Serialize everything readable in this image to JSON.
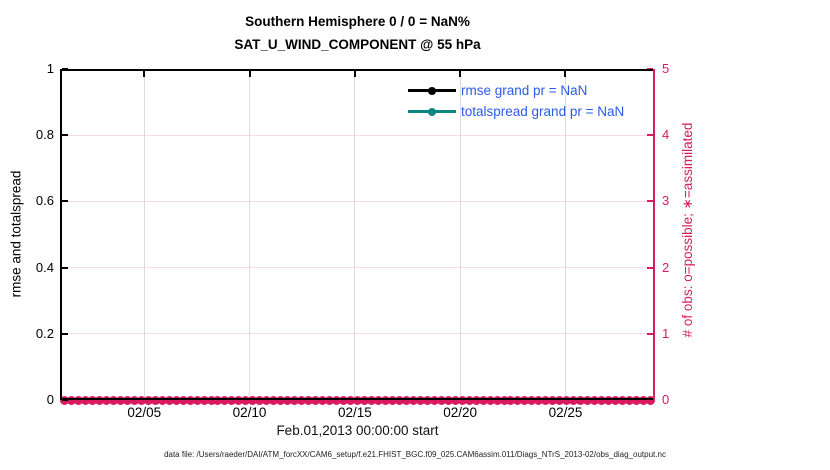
{
  "chart": {
    "title1": "Southern Hemisphere 0 / 0 = NaN%",
    "title2": "SAT_U_WIND_COMPONENT @ 55 hPa",
    "xlabel": "Feb.01,2013 00:00:00 start",
    "ylabel_left": "rmse and totalspread",
    "ylabel_right": "# of obs: o=possible; ∗=assimilated"
  },
  "chart_data": {
    "type": "line",
    "title": "Southern Hemisphere 0 / 0 = NaN%",
    "subtitle": "SAT_U_WIND_COMPONENT @ 55 hPa",
    "xlabel": "Feb.01,2013 00:00:00 start",
    "ylabel_left": "rmse and totalspread",
    "ylabel_right": "# of obs: o=possible; ∗=assimilated",
    "ylim_left": [
      0,
      1
    ],
    "yticks_left": [
      0,
      0.2,
      0.4,
      0.6,
      0.8,
      1
    ],
    "ylim_right": [
      0,
      5
    ],
    "yticks_right": [
      0,
      1,
      2,
      3,
      4,
      5
    ],
    "x_range_days": [
      0,
      28.25
    ],
    "xticks": [
      {
        "label": "02/05",
        "day": 4
      },
      {
        "label": "02/10",
        "day": 9
      },
      {
        "label": "02/15",
        "day": 14
      },
      {
        "label": "02/20",
        "day": 19
      },
      {
        "label": "02/25",
        "day": 24
      }
    ],
    "grid": true,
    "legend_position": "top-right inside plot, no box",
    "series": [
      {
        "name": "rmse grand pr = NaN",
        "color": "#000000",
        "values": "all NaN (no curve drawn)"
      },
      {
        "name": "totalspread grand pr = NaN",
        "color": "#0b8583",
        "values": "all NaN (no curve drawn)"
      }
    ],
    "obs_counts": {
      "possible": 0,
      "assimilated": 0,
      "y_value": 0,
      "marker_color": "#d81a5e",
      "visible_marker_count": 85,
      "note": "dense row of overlapping pink circle markers at y=0 spanning the full x-axis"
    }
  },
  "legend": {
    "items": [
      {
        "label": "rmse grand pr = NaN",
        "color": "#000000"
      },
      {
        "label": "totalspread grand pr = NaN",
        "color": "#0b8583"
      }
    ]
  },
  "footer": {
    "text": "data file: /Users/raeder/DAI/ATM_forcXX/CAM6_setup/f.e21.FHIST_BGC.f09_025.CAM6assim.011/Diags_NTrS_2013-02/obs_diag_output.nc"
  },
  "colors": {
    "accent_pink": "#d81a5e",
    "teal": "#0b8583",
    "legend_blue": "#2a5ce6",
    "grid_gray": "#dcdcdc",
    "grid_pink": "#f8dbe5"
  }
}
